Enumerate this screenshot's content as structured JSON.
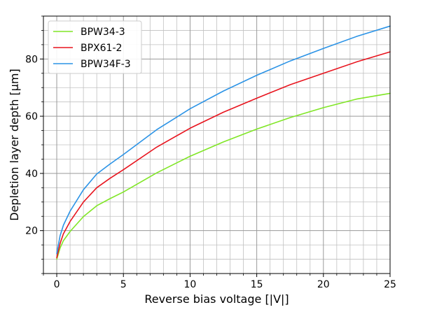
{
  "chart_data": {
    "type": "line",
    "xlabel": "Reverse bias voltage [|V|]",
    "ylabel": "Depletion layer depth [µm]",
    "xlim": [
      -1,
      25
    ],
    "ylim": [
      5,
      95
    ],
    "x_ticks": [
      0,
      5,
      10,
      15,
      20,
      25
    ],
    "y_ticks": [
      20,
      40,
      60,
      80
    ],
    "grid": true,
    "legend_position": "top-left",
    "series": [
      {
        "name": "BPW34-3",
        "color": "#80e626",
        "x": [
          0,
          0.25,
          0.5,
          1,
          2,
          3,
          4,
          5,
          7.5,
          10,
          12.5,
          15,
          17.5,
          20,
          22.5,
          25
        ],
        "y": [
          10,
          13.9,
          16.5,
          19.7,
          24.9,
          28.7,
          31.2,
          33.5,
          40.2,
          46.0,
          51.0,
          55.5,
          59.5,
          63.0,
          66.0,
          68.0
        ]
      },
      {
        "name": "BPX61-2",
        "color": "#e8141e",
        "x": [
          0,
          0.25,
          0.5,
          1,
          2,
          3,
          4,
          5,
          7.5,
          10,
          12.5,
          15,
          17.5,
          20,
          22.5,
          25
        ],
        "y": [
          10.5,
          15.5,
          18.9,
          23.2,
          30.0,
          35.0,
          38.3,
          41.3,
          49.2,
          55.8,
          61.4,
          66.3,
          71.0,
          75.0,
          79.0,
          82.5
        ]
      },
      {
        "name": "BPW34F-3",
        "color": "#2b93e6",
        "x": [
          0,
          0.25,
          0.5,
          1,
          2,
          3,
          4,
          5,
          7.5,
          10,
          12.5,
          15,
          17.5,
          20,
          22.5,
          25
        ],
        "y": [
          12,
          18.2,
          21.9,
          26.8,
          34.3,
          39.8,
          43.3,
          46.6,
          55.3,
          62.6,
          68.8,
          74.3,
          79.3,
          83.7,
          87.9,
          91.5
        ]
      }
    ]
  }
}
